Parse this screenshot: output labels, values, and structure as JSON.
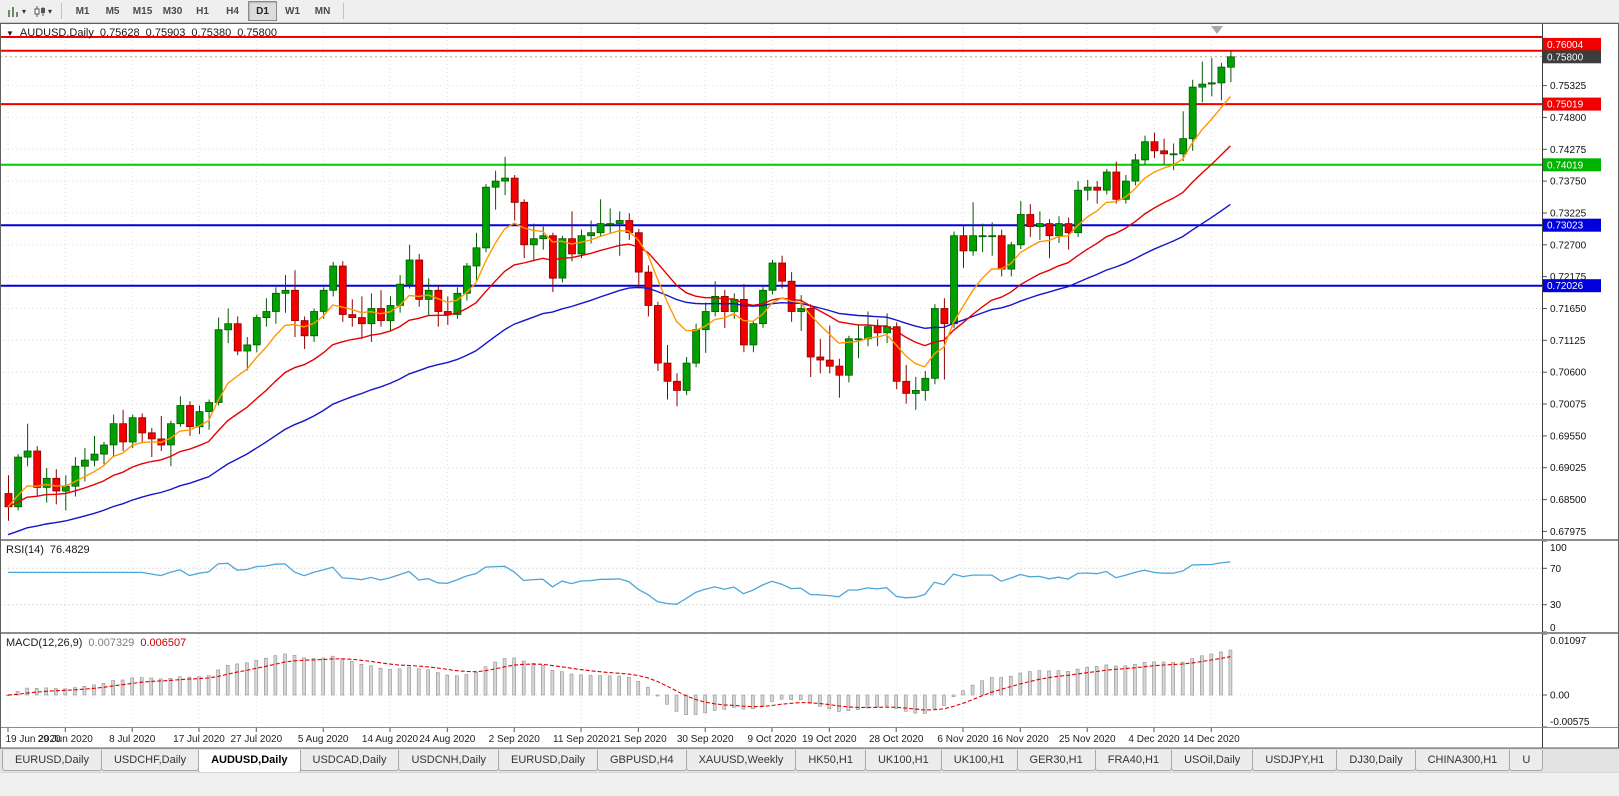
{
  "toolbar": {
    "icons": [
      "bar-chart-icon",
      "candlestick-icon"
    ],
    "timeframes": [
      {
        "label": "M1",
        "active": false
      },
      {
        "label": "M5",
        "active": false
      },
      {
        "label": "M15",
        "active": false
      },
      {
        "label": "M30",
        "active": false
      },
      {
        "label": "H1",
        "active": false
      },
      {
        "label": "H4",
        "active": false
      },
      {
        "label": "D1",
        "active": true
      },
      {
        "label": "W1",
        "active": false
      },
      {
        "label": "MN",
        "active": false
      }
    ]
  },
  "chart_header": {
    "collapse_icon": "▼",
    "symbol": "AUDUSD,Daily",
    "open": "0.75628",
    "high": "0.75903",
    "low": "0.75380",
    "close": "0.75800"
  },
  "colors": {
    "grid": "#dedede",
    "bid_line": "#aaaaaa",
    "candle_up": "#00a000",
    "candle_up_edge": "#005a00",
    "candle_down": "#f20000",
    "candle_down_edge": "#8e0000"
  },
  "price_axis": {
    "ticks": [
      "0.75325",
      "0.74800",
      "0.74275",
      "0.73750",
      "0.73225",
      "0.72700",
      "0.72175",
      "0.71650",
      "0.71125",
      "0.70600",
      "0.70075",
      "0.69550",
      "0.69025",
      "0.68500",
      "0.67975"
    ],
    "tags": [
      {
        "price": 0.76004,
        "text": "0.76004",
        "bg": "#f20000",
        "fg": "#ffffff"
      },
      {
        "price": 0.758,
        "text": "0.75800",
        "bg": "#3c3c3c",
        "fg": "#ffffff"
      },
      {
        "price": 0.75019,
        "text": "0.75019",
        "bg": "#f20000",
        "fg": "#ffffff"
      },
      {
        "price": 0.74019,
        "text": "0.74019",
        "bg": "#00b400",
        "fg": "#ffffff"
      },
      {
        "price": 0.73023,
        "text": "0.73023",
        "bg": "#0000dd",
        "fg": "#ffffff"
      },
      {
        "price": 0.72026,
        "text": "0.72026",
        "bg": "#0000dd",
        "fg": "#ffffff"
      }
    ]
  },
  "hlines": [
    {
      "price": 0.76125,
      "color": "#f20000",
      "width": 2
    },
    {
      "price": 0.759,
      "color": "#f20000",
      "width": 2
    },
    {
      "price": 0.75019,
      "color": "#f20000",
      "width": 2
    },
    {
      "price": 0.74019,
      "color": "#00cc00",
      "width": 2
    },
    {
      "price": 0.73023,
      "color": "#0000dd",
      "width": 2
    },
    {
      "price": 0.72026,
      "color": "#0000dd",
      "width": 2
    }
  ],
  "bid_line": {
    "price": 0.758
  },
  "rsi": {
    "label": "RSI(14)",
    "value": "76.4829",
    "color": "#4da6d9",
    "levels": [
      70,
      30
    ],
    "range": [
      0,
      100
    ],
    "scale": [
      {
        "text": "100",
        "value": 100
      },
      {
        "text": "70",
        "value": 70
      },
      {
        "text": "30",
        "value": 30
      },
      {
        "text": "0",
        "value": 0
      }
    ]
  },
  "macd": {
    "label": "MACD(12,26,9)",
    "value_main": "0.007329",
    "value_signal": "0.006507",
    "histogram_fill": "#d6d6d6",
    "histogram_edge": "#8f8f8f",
    "signal_color": "#e00000",
    "range": [
      -0.00575,
      0.01097
    ],
    "scale": [
      {
        "text": "0.01097",
        "value": 0.01097
      },
      {
        "text": "0.00",
        "value": 0
      },
      {
        "text": "-0.00575",
        "value": -0.00575
      }
    ]
  },
  "tabs": [
    {
      "label": "EURUSD,Daily",
      "active": false
    },
    {
      "label": "USDCHF,Daily",
      "active": false
    },
    {
      "label": "AUDUSD,Daily",
      "active": true
    },
    {
      "label": "USDCAD,Daily",
      "active": false
    },
    {
      "label": "USDCNH,Daily",
      "active": false
    },
    {
      "label": "EURUSD,Daily",
      "active": false
    },
    {
      "label": "GBPUSD,H4",
      "active": false
    },
    {
      "label": "XAUUSD,Weekly",
      "active": false
    },
    {
      "label": "HK50,H1",
      "active": false
    },
    {
      "label": "UK100,H1",
      "active": false
    },
    {
      "label": "UK100,H1",
      "active": false
    },
    {
      "label": "GER30,H1",
      "active": false
    },
    {
      "label": "FRA40,H1",
      "active": false
    },
    {
      "label": "USOil,Daily",
      "active": false
    },
    {
      "label": "USDJPY,H1",
      "active": false
    },
    {
      "label": "DJ30,Daily",
      "active": false
    },
    {
      "label": "CHINA300,H1",
      "active": false
    },
    {
      "label": "U",
      "active": false
    }
  ],
  "chart_data": {
    "type": "candlestick",
    "symbol": "AUDUSD",
    "timeframe": "Daily",
    "price_range": [
      0.6785,
      0.7634
    ],
    "x_axis_labels": [
      {
        "text": "19 Jun 2020",
        "index": 0
      },
      {
        "text": "29 Jun 2020",
        "index": 6
      },
      {
        "text": "8 Jul 2020",
        "index": 13
      },
      {
        "text": "17 Jul 2020",
        "index": 20
      },
      {
        "text": "27 Jul 2020",
        "index": 26
      },
      {
        "text": "5 Aug 2020",
        "index": 33
      },
      {
        "text": "14 Aug 2020",
        "index": 40
      },
      {
        "text": "24 Aug 2020",
        "index": 46
      },
      {
        "text": "2 Sep 2020",
        "index": 53
      },
      {
        "text": "11 Sep 2020",
        "index": 60
      },
      {
        "text": "21 Sep 2020",
        "index": 66
      },
      {
        "text": "30 Sep 2020",
        "index": 73
      },
      {
        "text": "9 Oct 2020",
        "index": 80
      },
      {
        "text": "19 Oct 2020",
        "index": 86
      },
      {
        "text": "28 Oct 2020",
        "index": 93
      },
      {
        "text": "6 Nov 2020",
        "index": 100
      },
      {
        "text": "16 Nov 2020",
        "index": 106
      },
      {
        "text": "25 Nov 2020",
        "index": 113
      },
      {
        "text": "4 Dec 2020",
        "index": 120
      },
      {
        "text": "14 Dec 2020",
        "index": 126
      }
    ],
    "moving_averages": [
      {
        "name": "ema-slow",
        "period": 45,
        "color": "#1414cc",
        "seed": 0.679
      },
      {
        "name": "ema-mid",
        "period": 20,
        "color": "#e60000"
      },
      {
        "name": "ema-fast",
        "period": 8,
        "color": "#ff9900"
      }
    ],
    "candles": [
      [
        0.686,
        0.689,
        0.6815,
        0.6838
      ],
      [
        0.6838,
        0.6925,
        0.6832,
        0.692
      ],
      [
        0.692,
        0.6975,
        0.6905,
        0.693
      ],
      [
        0.693,
        0.6938,
        0.6855,
        0.687
      ],
      [
        0.687,
        0.6902,
        0.6845,
        0.6885
      ],
      [
        0.6885,
        0.69,
        0.6842,
        0.6864
      ],
      [
        0.6864,
        0.689,
        0.6832,
        0.6872
      ],
      [
        0.6872,
        0.692,
        0.6855,
        0.6905
      ],
      [
        0.6905,
        0.6935,
        0.688,
        0.6915
      ],
      [
        0.6915,
        0.6955,
        0.6905,
        0.6925
      ],
      [
        0.6925,
        0.6945,
        0.6908,
        0.694
      ],
      [
        0.694,
        0.699,
        0.692,
        0.6975
      ],
      [
        0.6975,
        0.6998,
        0.693,
        0.6945
      ],
      [
        0.6945,
        0.699,
        0.6935,
        0.6985
      ],
      [
        0.6985,
        0.6992,
        0.6945,
        0.696
      ],
      [
        0.696,
        0.6968,
        0.692,
        0.695
      ],
      [
        0.695,
        0.6988,
        0.693,
        0.694
      ],
      [
        0.694,
        0.698,
        0.6905,
        0.6975
      ],
      [
        0.6975,
        0.702,
        0.697,
        0.7005
      ],
      [
        0.7005,
        0.7012,
        0.6955,
        0.697
      ],
      [
        0.697,
        0.7005,
        0.6958,
        0.6995
      ],
      [
        0.6995,
        0.7015,
        0.6965,
        0.701
      ],
      [
        0.701,
        0.715,
        0.7005,
        0.713
      ],
      [
        0.713,
        0.7165,
        0.7108,
        0.714
      ],
      [
        0.714,
        0.7152,
        0.7088,
        0.7095
      ],
      [
        0.7095,
        0.7118,
        0.7063,
        0.7105
      ],
      [
        0.7105,
        0.7155,
        0.7093,
        0.715
      ],
      [
        0.715,
        0.7182,
        0.7135,
        0.716
      ],
      [
        0.716,
        0.72,
        0.714,
        0.719
      ],
      [
        0.719,
        0.722,
        0.7158,
        0.7195
      ],
      [
        0.7195,
        0.7228,
        0.7118,
        0.7145
      ],
      [
        0.7145,
        0.7152,
        0.7098,
        0.712
      ],
      [
        0.712,
        0.7165,
        0.711,
        0.716
      ],
      [
        0.716,
        0.72,
        0.7148,
        0.7195
      ],
      [
        0.7195,
        0.7242,
        0.7185,
        0.7235
      ],
      [
        0.7235,
        0.7243,
        0.7143,
        0.7155
      ],
      [
        0.7155,
        0.718,
        0.7135,
        0.715
      ],
      [
        0.715,
        0.7185,
        0.7115,
        0.714
      ],
      [
        0.714,
        0.719,
        0.711,
        0.7165
      ],
      [
        0.7165,
        0.7195,
        0.7135,
        0.7145
      ],
      [
        0.7145,
        0.7185,
        0.7128,
        0.717
      ],
      [
        0.717,
        0.722,
        0.7158,
        0.7205
      ],
      [
        0.7205,
        0.727,
        0.7198,
        0.7245
      ],
      [
        0.7245,
        0.7255,
        0.7168,
        0.718
      ],
      [
        0.718,
        0.7215,
        0.7153,
        0.7195
      ],
      [
        0.7195,
        0.7202,
        0.7135,
        0.716
      ],
      [
        0.716,
        0.7185,
        0.7138,
        0.7155
      ],
      [
        0.7155,
        0.72,
        0.7148,
        0.719
      ],
      [
        0.719,
        0.724,
        0.7178,
        0.7235
      ],
      [
        0.7235,
        0.729,
        0.7208,
        0.7265
      ],
      [
        0.7265,
        0.737,
        0.7258,
        0.7365
      ],
      [
        0.7365,
        0.7392,
        0.7328,
        0.7375
      ],
      [
        0.7375,
        0.7415,
        0.7352,
        0.738
      ],
      [
        0.738,
        0.7385,
        0.731,
        0.734
      ],
      [
        0.734,
        0.7345,
        0.7248,
        0.727
      ],
      [
        0.727,
        0.7305,
        0.7243,
        0.728
      ],
      [
        0.728,
        0.73,
        0.7262,
        0.7285
      ],
      [
        0.7285,
        0.729,
        0.7192,
        0.7215
      ],
      [
        0.7215,
        0.7285,
        0.7208,
        0.728
      ],
      [
        0.728,
        0.7325,
        0.7243,
        0.7255
      ],
      [
        0.7255,
        0.7295,
        0.7248,
        0.7285
      ],
      [
        0.7285,
        0.731,
        0.7272,
        0.729
      ],
      [
        0.729,
        0.7345,
        0.7283,
        0.7305
      ],
      [
        0.7305,
        0.733,
        0.7288,
        0.7305
      ],
      [
        0.7305,
        0.7325,
        0.7252,
        0.731
      ],
      [
        0.731,
        0.7322,
        0.7278,
        0.729
      ],
      [
        0.729,
        0.7296,
        0.7198,
        0.7225
      ],
      [
        0.7225,
        0.7236,
        0.7152,
        0.717
      ],
      [
        0.717,
        0.7176,
        0.7062,
        0.7075
      ],
      [
        0.7075,
        0.7105,
        0.7015,
        0.7045
      ],
      [
        0.7045,
        0.7058,
        0.7004,
        0.703
      ],
      [
        0.703,
        0.7085,
        0.7022,
        0.7075
      ],
      [
        0.7075,
        0.714,
        0.7068,
        0.713
      ],
      [
        0.713,
        0.7175,
        0.7092,
        0.716
      ],
      [
        0.716,
        0.721,
        0.7152,
        0.7185
      ],
      [
        0.7185,
        0.7196,
        0.7133,
        0.716
      ],
      [
        0.716,
        0.719,
        0.7148,
        0.718
      ],
      [
        0.718,
        0.7205,
        0.7093,
        0.7105
      ],
      [
        0.7105,
        0.7145,
        0.7093,
        0.714
      ],
      [
        0.714,
        0.72,
        0.7133,
        0.7195
      ],
      [
        0.7195,
        0.7245,
        0.7188,
        0.724
      ],
      [
        0.724,
        0.7252,
        0.7198,
        0.721
      ],
      [
        0.721,
        0.7225,
        0.7143,
        0.716
      ],
      [
        0.716,
        0.7187,
        0.7128,
        0.7165
      ],
      [
        0.7165,
        0.7172,
        0.7052,
        0.7085
      ],
      [
        0.7085,
        0.7115,
        0.7058,
        0.708
      ],
      [
        0.708,
        0.7137,
        0.7058,
        0.707
      ],
      [
        0.707,
        0.7082,
        0.7018,
        0.7055
      ],
      [
        0.7055,
        0.712,
        0.7043,
        0.7115
      ],
      [
        0.7115,
        0.7137,
        0.7083,
        0.7115
      ],
      [
        0.7115,
        0.716,
        0.7103,
        0.7135
      ],
      [
        0.7135,
        0.7147,
        0.7103,
        0.7125
      ],
      [
        0.7125,
        0.7157,
        0.7108,
        0.7135
      ],
      [
        0.7135,
        0.7142,
        0.7032,
        0.7045
      ],
      [
        0.7045,
        0.7072,
        0.7008,
        0.7025
      ],
      [
        0.7025,
        0.7052,
        0.6998,
        0.703
      ],
      [
        0.703,
        0.7062,
        0.7013,
        0.705
      ],
      [
        0.705,
        0.7172,
        0.704,
        0.7165
      ],
      [
        0.7165,
        0.7182,
        0.7048,
        0.714
      ],
      [
        0.714,
        0.7292,
        0.7133,
        0.7285
      ],
      [
        0.7285,
        0.7302,
        0.7232,
        0.726
      ],
      [
        0.726,
        0.734,
        0.7252,
        0.7285
      ],
      [
        0.7285,
        0.7305,
        0.7258,
        0.7285
      ],
      [
        0.7285,
        0.7307,
        0.7252,
        0.7285
      ],
      [
        0.7285,
        0.7295,
        0.7218,
        0.723
      ],
      [
        0.723,
        0.7275,
        0.7218,
        0.727
      ],
      [
        0.727,
        0.7342,
        0.7263,
        0.732
      ],
      [
        0.732,
        0.7337,
        0.7283,
        0.73
      ],
      [
        0.73,
        0.7325,
        0.7278,
        0.7305
      ],
      [
        0.7305,
        0.7312,
        0.7248,
        0.7285
      ],
      [
        0.7285,
        0.7317,
        0.7273,
        0.7305
      ],
      [
        0.7305,
        0.7315,
        0.7262,
        0.729
      ],
      [
        0.729,
        0.7375,
        0.7283,
        0.736
      ],
      [
        0.736,
        0.7377,
        0.7343,
        0.7365
      ],
      [
        0.7365,
        0.7375,
        0.7338,
        0.736
      ],
      [
        0.736,
        0.7395,
        0.7353,
        0.739
      ],
      [
        0.739,
        0.7407,
        0.7338,
        0.7345
      ],
      [
        0.7345,
        0.7385,
        0.7338,
        0.7375
      ],
      [
        0.7375,
        0.742,
        0.7368,
        0.741
      ],
      [
        0.741,
        0.745,
        0.7402,
        0.744
      ],
      [
        0.744,
        0.7455,
        0.7413,
        0.7425
      ],
      [
        0.7425,
        0.7445,
        0.7403,
        0.742
      ],
      [
        0.742,
        0.7437,
        0.7393,
        0.742
      ],
      [
        0.742,
        0.749,
        0.7408,
        0.7445
      ],
      [
        0.7445,
        0.7542,
        0.7425,
        0.753
      ],
      [
        0.753,
        0.7572,
        0.7505,
        0.7535
      ],
      [
        0.7535,
        0.7578,
        0.7515,
        0.7537
      ],
      [
        0.7537,
        0.757,
        0.7508,
        0.7563
      ],
      [
        0.75628,
        0.75903,
        0.7538,
        0.758
      ]
    ]
  }
}
